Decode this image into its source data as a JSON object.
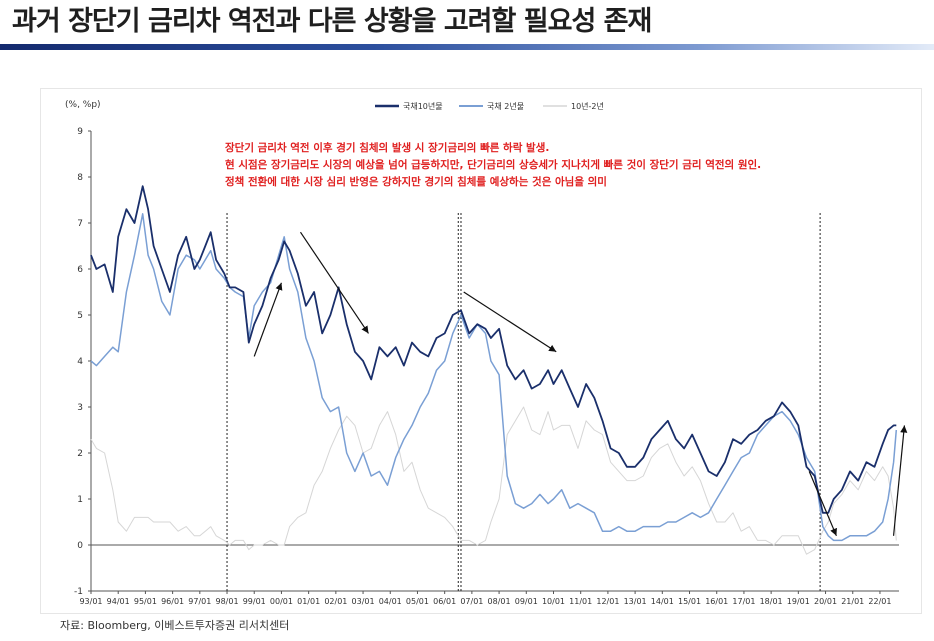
{
  "page": {
    "title": "과거 장단기 금리차 역전과 다른 상황을 고려할 필요성 존재",
    "source": "자료: Bloomberg, 이베스트투자증권 리서치센터"
  },
  "colors": {
    "title_rule": "#1f3c88",
    "series_10y": "#1a2f6b",
    "series_2y": "#7a9fd4",
    "series_spread": "#d6d6d6",
    "annotation": "#e02020",
    "arrow": "#111111"
  },
  "chart_data": {
    "type": "line",
    "unit_label": "(%, %p)",
    "ylim": [
      -1,
      9
    ],
    "yticks": [
      -1,
      0,
      1,
      2,
      3,
      4,
      5,
      6,
      7,
      8,
      9
    ],
    "xlim": [
      1993.0,
      2022.7
    ],
    "xtick_labels": [
      "93/01",
      "94/01",
      "95/01",
      "96/01",
      "97/01",
      "98/01",
      "99/01",
      "00/01",
      "01/01",
      "02/01",
      "03/01",
      "04/01",
      "05/01",
      "06/01",
      "07/01",
      "08/01",
      "09/01",
      "10/01",
      "11/01",
      "12/01",
      "13/01",
      "14/01",
      "15/01",
      "16/01",
      "17/01",
      "18/01",
      "19/01",
      "20/01",
      "21/01",
      "22/01"
    ],
    "grid": false,
    "legend_position": "top",
    "vertical_markers": [
      1998.0,
      2006.5,
      2006.6,
      2019.8
    ],
    "annotations": [
      "장단기 금리차 역전 이후 경기 침체의 발생 시 장기금리의 빠른 하락 발생.",
      "현 시점은 장기금리도 시장의 예상을 넘어 급등하지만, 단기금리의 상승세가 지나치게 빠른 것이 장단기 금리 역전의 원인.",
      "정책 전환에 대한 시장 심리 반영은 강하지만 경기의 침체를 예상하는 것은 아님을 의미"
    ],
    "arrows": [
      {
        "from": [
          1999.0,
          4.1
        ],
        "to": [
          2000.0,
          5.7
        ]
      },
      {
        "from": [
          2000.7,
          6.8
        ],
        "to": [
          2003.2,
          4.6
        ]
      },
      {
        "from": [
          2006.7,
          5.5
        ],
        "to": [
          2010.1,
          4.2
        ]
      },
      {
        "from": [
          2019.4,
          1.6
        ],
        "to": [
          2020.4,
          0.2
        ]
      },
      {
        "from": [
          2022.5,
          0.2
        ],
        "to": [
          2022.9,
          2.6
        ]
      }
    ],
    "series": [
      {
        "name": "국채10년물",
        "x": [
          1993.0,
          1993.2,
          1993.5,
          1993.8,
          1994.0,
          1994.3,
          1994.6,
          1994.9,
          1995.1,
          1995.3,
          1995.6,
          1995.9,
          1996.2,
          1996.5,
          1996.8,
          1997.0,
          1997.2,
          1997.4,
          1997.6,
          1997.9,
          1998.1,
          1998.3,
          1998.6,
          1998.8,
          1999.0,
          1999.3,
          1999.6,
          1999.9,
          2000.1,
          2000.3,
          2000.6,
          2000.9,
          2001.2,
          2001.5,
          2001.8,
          2002.1,
          2002.4,
          2002.7,
          2003.0,
          2003.3,
          2003.6,
          2003.9,
          2004.2,
          2004.5,
          2004.8,
          2005.1,
          2005.4,
          2005.7,
          2006.0,
          2006.3,
          2006.6,
          2006.9,
          2007.2,
          2007.5,
          2007.7,
          2008.0,
          2008.3,
          2008.6,
          2008.9,
          2009.2,
          2009.5,
          2009.8,
          2010.0,
          2010.3,
          2010.6,
          2010.9,
          2011.2,
          2011.5,
          2011.8,
          2012.1,
          2012.4,
          2012.7,
          2013.0,
          2013.3,
          2013.6,
          2013.9,
          2014.2,
          2014.5,
          2014.8,
          2015.1,
          2015.4,
          2015.7,
          2016.0,
          2016.3,
          2016.6,
          2016.9,
          2017.2,
          2017.5,
          2017.8,
          2018.1,
          2018.4,
          2018.7,
          2019.0,
          2019.3,
          2019.6,
          2019.9,
          2020.1,
          2020.3,
          2020.6,
          2020.9,
          2021.2,
          2021.5,
          2021.8,
          2022.1,
          2022.3,
          2022.5,
          2022.6
        ],
        "values": [
          6.3,
          6.0,
          6.1,
          5.5,
          6.7,
          7.3,
          7.0,
          7.8,
          7.3,
          6.5,
          6.0,
          5.5,
          6.3,
          6.7,
          6.0,
          6.2,
          6.5,
          6.8,
          6.2,
          5.9,
          5.6,
          5.6,
          5.5,
          4.4,
          4.8,
          5.2,
          5.8,
          6.2,
          6.6,
          6.4,
          5.9,
          5.2,
          5.5,
          4.6,
          5.0,
          5.6,
          4.8,
          4.2,
          4.0,
          3.6,
          4.3,
          4.1,
          4.3,
          3.9,
          4.4,
          4.2,
          4.1,
          4.5,
          4.6,
          5.0,
          5.1,
          4.6,
          4.8,
          4.7,
          4.5,
          4.7,
          3.9,
          3.6,
          3.8,
          3.4,
          3.5,
          3.8,
          3.5,
          3.8,
          3.4,
          3.0,
          3.5,
          3.2,
          2.7,
          2.1,
          2.0,
          1.7,
          1.7,
          1.9,
          2.3,
          2.5,
          2.7,
          2.3,
          2.1,
          2.4,
          2.0,
          1.6,
          1.5,
          1.8,
          2.3,
          2.2,
          2.4,
          2.5,
          2.7,
          2.8,
          3.1,
          2.9,
          2.6,
          1.7,
          1.5,
          0.7,
          0.7,
          1.0,
          1.2,
          1.6,
          1.4,
          1.8,
          1.7,
          2.2,
          2.5,
          2.6,
          2.6
        ]
      },
      {
        "name": "국채 2년물",
        "x": [
          1993.0,
          1993.2,
          1993.5,
          1993.8,
          1994.0,
          1994.3,
          1994.6,
          1994.9,
          1995.1,
          1995.3,
          1995.6,
          1995.9,
          1996.2,
          1996.5,
          1996.8,
          1997.0,
          1997.2,
          1997.4,
          1997.6,
          1997.9,
          1998.1,
          1998.3,
          1998.6,
          1998.8,
          1999.0,
          1999.3,
          1999.6,
          1999.9,
          2000.1,
          2000.3,
          2000.6,
          2000.9,
          2001.2,
          2001.5,
          2001.8,
          2002.1,
          2002.4,
          2002.7,
          2003.0,
          2003.3,
          2003.6,
          2003.9,
          2004.2,
          2004.5,
          2004.8,
          2005.1,
          2005.4,
          2005.7,
          2006.0,
          2006.3,
          2006.6,
          2006.9,
          2007.2,
          2007.5,
          2007.7,
          2008.0,
          2008.3,
          2008.6,
          2008.9,
          2009.2,
          2009.5,
          2009.8,
          2010.0,
          2010.3,
          2010.6,
          2010.9,
          2011.2,
          2011.5,
          2011.8,
          2012.1,
          2012.4,
          2012.7,
          2013.0,
          2013.3,
          2013.6,
          2013.9,
          2014.2,
          2014.5,
          2014.8,
          2015.1,
          2015.4,
          2015.7,
          2016.0,
          2016.3,
          2016.6,
          2016.9,
          2017.2,
          2017.5,
          2017.8,
          2018.1,
          2018.4,
          2018.7,
          2019.0,
          2019.3,
          2019.6,
          2019.9,
          2020.1,
          2020.3,
          2020.6,
          2020.9,
          2021.2,
          2021.5,
          2021.8,
          2022.1,
          2022.3,
          2022.5,
          2022.6
        ],
        "values": [
          4.0,
          3.9,
          4.1,
          4.3,
          4.2,
          5.5,
          6.3,
          7.2,
          6.3,
          6.0,
          5.3,
          5.0,
          6.0,
          6.3,
          6.2,
          6.0,
          6.2,
          6.4,
          6.0,
          5.8,
          5.6,
          5.5,
          5.4,
          4.5,
          5.2,
          5.5,
          5.7,
          6.3,
          6.7,
          6.0,
          5.5,
          4.5,
          4.0,
          3.2,
          2.9,
          3.0,
          2.0,
          1.6,
          2.0,
          1.5,
          1.6,
          1.3,
          1.9,
          2.3,
          2.6,
          3.0,
          3.3,
          3.8,
          4.0,
          4.6,
          5.0,
          4.5,
          4.8,
          4.6,
          4.0,
          3.7,
          1.5,
          0.9,
          0.8,
          0.9,
          1.1,
          0.9,
          1.0,
          1.2,
          0.8,
          0.9,
          0.8,
          0.7,
          0.3,
          0.3,
          0.4,
          0.3,
          0.3,
          0.4,
          0.4,
          0.4,
          0.5,
          0.5,
          0.6,
          0.7,
          0.6,
          0.7,
          1.0,
          1.3,
          1.6,
          1.9,
          2.0,
          2.4,
          2.6,
          2.8,
          2.9,
          2.7,
          2.4,
          1.9,
          1.6,
          0.4,
          0.2,
          0.1,
          0.1,
          0.2,
          0.2,
          0.2,
          0.3,
          0.5,
          1.0,
          1.8,
          2.5
        ]
      },
      {
        "name": "10년-2년",
        "x": [
          1993.0,
          1993.2,
          1993.5,
          1993.8,
          1994.0,
          1994.3,
          1994.6,
          1994.9,
          1995.1,
          1995.3,
          1995.6,
          1995.9,
          1996.2,
          1996.5,
          1996.8,
          1997.0,
          1997.2,
          1997.4,
          1997.6,
          1997.9,
          1998.1,
          1998.3,
          1998.6,
          1998.8,
          1999.0,
          1999.3,
          1999.6,
          1999.9,
          2000.1,
          2000.3,
          2000.6,
          2000.9,
          2001.2,
          2001.5,
          2001.8,
          2002.1,
          2002.4,
          2002.7,
          2003.0,
          2003.3,
          2003.6,
          2003.9,
          2004.2,
          2004.5,
          2004.8,
          2005.1,
          2005.4,
          2005.7,
          2006.0,
          2006.3,
          2006.6,
          2006.9,
          2007.2,
          2007.5,
          2007.7,
          2008.0,
          2008.3,
          2008.6,
          2008.9,
          2009.2,
          2009.5,
          2009.8,
          2010.0,
          2010.3,
          2010.6,
          2010.9,
          2011.2,
          2011.5,
          2011.8,
          2012.1,
          2012.4,
          2012.7,
          2013.0,
          2013.3,
          2013.6,
          2013.9,
          2014.2,
          2014.5,
          2014.8,
          2015.1,
          2015.4,
          2015.7,
          2016.0,
          2016.3,
          2016.6,
          2016.9,
          2017.2,
          2017.5,
          2017.8,
          2018.1,
          2018.4,
          2018.7,
          2019.0,
          2019.3,
          2019.6,
          2019.9,
          2020.1,
          2020.3,
          2020.6,
          2020.9,
          2021.2,
          2021.5,
          2021.8,
          2022.1,
          2022.3,
          2022.5,
          2022.6
        ],
        "values": [
          2.3,
          2.1,
          2.0,
          1.2,
          0.5,
          0.3,
          0.6,
          0.6,
          0.6,
          0.5,
          0.5,
          0.5,
          0.3,
          0.4,
          0.2,
          0.2,
          0.3,
          0.4,
          0.2,
          0.1,
          0.0,
          0.1,
          0.1,
          -0.1,
          0.0,
          0.0,
          0.1,
          0.0,
          0.0,
          0.4,
          0.6,
          0.7,
          1.3,
          1.6,
          2.1,
          2.5,
          2.8,
          2.6,
          2.0,
          2.1,
          2.6,
          2.9,
          2.4,
          1.6,
          1.8,
          1.2,
          0.8,
          0.7,
          0.6,
          0.4,
          0.1,
          0.1,
          0.0,
          0.1,
          0.5,
          1.0,
          2.4,
          2.7,
          3.0,
          2.5,
          2.4,
          2.9,
          2.5,
          2.6,
          2.6,
          2.1,
          2.7,
          2.5,
          2.4,
          1.8,
          1.6,
          1.4,
          1.4,
          1.5,
          1.9,
          2.1,
          2.2,
          1.8,
          1.5,
          1.7,
          1.4,
          0.9,
          0.5,
          0.5,
          0.7,
          0.3,
          0.4,
          0.1,
          0.1,
          0.0,
          0.2,
          0.2,
          0.2,
          -0.2,
          -0.1,
          0.3,
          0.5,
          0.9,
          1.1,
          1.4,
          1.2,
          1.6,
          1.4,
          1.7,
          1.5,
          0.8,
          0.1
        ]
      }
    ]
  }
}
